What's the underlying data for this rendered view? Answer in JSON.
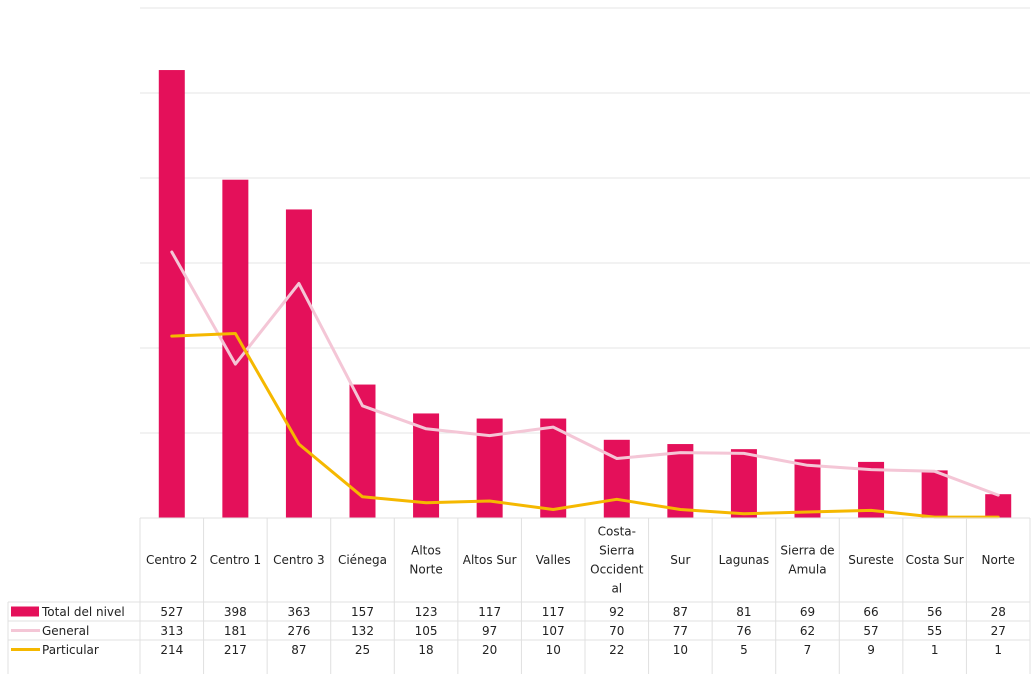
{
  "chart_data": {
    "type": "bar",
    "categories": [
      "Centro 2",
      "Centro 1",
      "Centro 3",
      "Ciénega",
      "Altos Norte",
      "Altos Sur",
      "Valles",
      "Costa-Sierra Occidental",
      "Sur",
      "Lagunas",
      "Sierra de Amula",
      "Sureste",
      "Costa Sur",
      "Norte"
    ],
    "category_label_lines": [
      [
        "Centro 2"
      ],
      [
        "Centro 1"
      ],
      [
        "Centro 3"
      ],
      [
        "Ciénega"
      ],
      [
        "Altos",
        "Norte"
      ],
      [
        "Altos Sur"
      ],
      [
        "Valles"
      ],
      [
        "Costa-",
        "Sierra",
        "Occident",
        "al"
      ],
      [
        "Sur"
      ],
      [
        "Lagunas"
      ],
      [
        "Sierra de",
        "Amula"
      ],
      [
        "Sureste"
      ],
      [
        "Costa Sur"
      ],
      [
        "Norte"
      ]
    ],
    "series": [
      {
        "name": "Total del nivel",
        "kind": "bar",
        "color": "#e4105a",
        "values": [
          527,
          398,
          363,
          157,
          123,
          117,
          117,
          92,
          87,
          81,
          69,
          66,
          56,
          28
        ]
      },
      {
        "name": "General",
        "kind": "line",
        "color": "#f4c6d6",
        "values": [
          313,
          181,
          276,
          132,
          105,
          97,
          107,
          70,
          77,
          76,
          62,
          57,
          55,
          27
        ]
      },
      {
        "name": "Particular",
        "kind": "line",
        "color": "#f5b800",
        "values": [
          214,
          217,
          87,
          25,
          18,
          20,
          10,
          22,
          10,
          5,
          7,
          9,
          1,
          1
        ]
      }
    ],
    "ylim": [
      0,
      600
    ],
    "grid": true,
    "legend": "data-table"
  }
}
